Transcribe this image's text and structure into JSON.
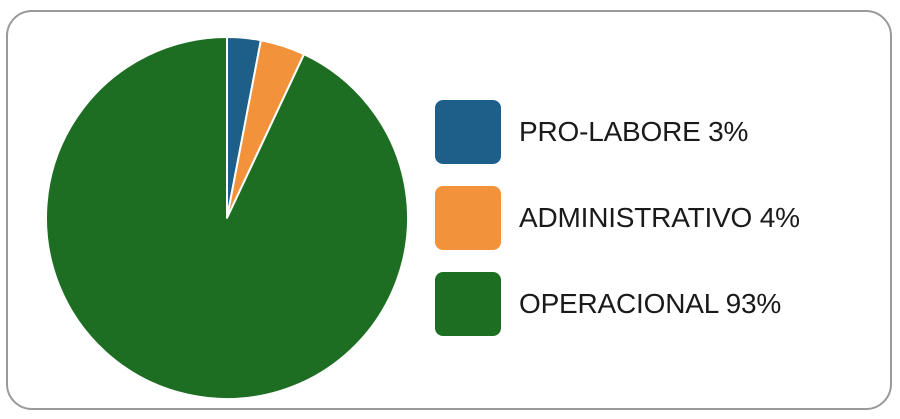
{
  "chart_data": {
    "type": "pie",
    "title": "",
    "slices": [
      {
        "label": "PRO-LABORE 3%",
        "value": 3,
        "color": "#1d5f88"
      },
      {
        "label": "ADMINISTRATIVO 4%",
        "value": 4,
        "color": "#f2923b"
      },
      {
        "label": "OPERACIONAL 93%",
        "value": 93,
        "color": "#1d6e23"
      }
    ],
    "start_angle_deg": 0,
    "direction": "clockwise",
    "slice_border_color": "#ffffff",
    "legend_position": "right"
  }
}
